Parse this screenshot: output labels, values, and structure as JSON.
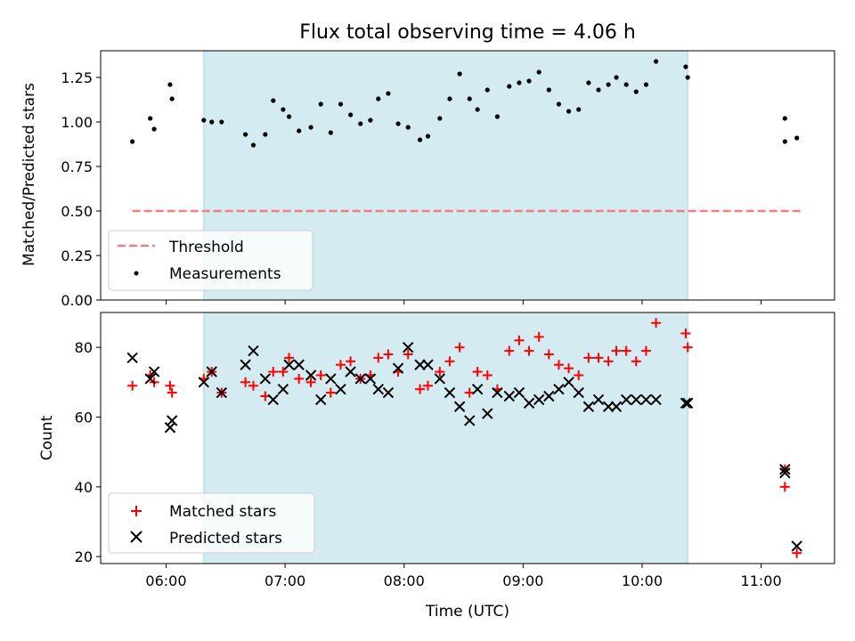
{
  "chart_data": [
    {
      "type": "scatter",
      "title": "Flux total observing time = 4.06 h",
      "ylabel": "Matched/Predicted stars",
      "xlim": [
        "05:27",
        "11:37"
      ],
      "ylim": [
        0,
        1.4
      ],
      "x_ticks": [
        "06:00",
        "07:00",
        "08:00",
        "09:00",
        "10:00",
        "11:00"
      ],
      "y_ticks": [
        "0.00",
        "0.25",
        "0.50",
        "0.75",
        "1.00",
        "1.25"
      ],
      "shaded_span": {
        "start": "06:19",
        "end": "10:23"
      },
      "legend_position": "lower-left",
      "series": [
        {
          "name": "Threshold",
          "style": "dashed-line",
          "color": "#f08080",
          "points": [
            [
              "05:43",
              0.5
            ],
            [
              "11:20",
              0.5
            ]
          ]
        },
        {
          "name": "Measurements",
          "style": "dot",
          "color": "#000000",
          "points": [
            [
              "05:43",
              0.89
            ],
            [
              "05:52",
              1.02
            ],
            [
              "05:54",
              0.96
            ],
            [
              "06:02",
              1.21
            ],
            [
              "06:03",
              1.13
            ],
            [
              "06:19",
              1.01
            ],
            [
              "06:23",
              1.0
            ],
            [
              "06:28",
              1.0
            ],
            [
              "06:40",
              0.93
            ],
            [
              "06:44",
              0.87
            ],
            [
              "06:50",
              0.93
            ],
            [
              "06:54",
              1.12
            ],
            [
              "06:59",
              1.07
            ],
            [
              "07:02",
              1.03
            ],
            [
              "07:07",
              0.95
            ],
            [
              "07:13",
              0.97
            ],
            [
              "07:18",
              1.1
            ],
            [
              "07:23",
              0.94
            ],
            [
              "07:28",
              1.1
            ],
            [
              "07:33",
              1.04
            ],
            [
              "07:38",
              0.99
            ],
            [
              "07:43",
              1.01
            ],
            [
              "07:47",
              1.13
            ],
            [
              "07:52",
              1.16
            ],
            [
              "07:57",
              0.99
            ],
            [
              "08:02",
              0.97
            ],
            [
              "08:08",
              0.9
            ],
            [
              "08:12",
              0.92
            ],
            [
              "08:18",
              1.02
            ],
            [
              "08:23",
              1.13
            ],
            [
              "08:28",
              1.27
            ],
            [
              "08:33",
              1.13
            ],
            [
              "08:37",
              1.07
            ],
            [
              "08:42",
              1.18
            ],
            [
              "08:47",
              1.03
            ],
            [
              "08:53",
              1.2
            ],
            [
              "08:58",
              1.22
            ],
            [
              "09:03",
              1.23
            ],
            [
              "09:08",
              1.28
            ],
            [
              "09:13",
              1.18
            ],
            [
              "09:18",
              1.1
            ],
            [
              "09:23",
              1.06
            ],
            [
              "09:28",
              1.07
            ],
            [
              "09:33",
              1.22
            ],
            [
              "09:38",
              1.18
            ],
            [
              "09:43",
              1.21
            ],
            [
              "09:47",
              1.25
            ],
            [
              "09:52",
              1.21
            ],
            [
              "09:57",
              1.17
            ],
            [
              "10:02",
              1.21
            ],
            [
              "10:07",
              1.34
            ],
            [
              "10:22",
              1.31
            ],
            [
              "10:23",
              1.25
            ],
            [
              "11:12",
              1.02
            ],
            [
              "11:12",
              0.89
            ],
            [
              "11:18",
              0.91
            ]
          ]
        }
      ]
    },
    {
      "type": "scatter",
      "xlabel": "Time (UTC)",
      "ylabel": "Count",
      "xlim": [
        "05:27",
        "11:37"
      ],
      "ylim": [
        18,
        90
      ],
      "x_ticks": [
        "06:00",
        "07:00",
        "08:00",
        "09:00",
        "10:00",
        "11:00"
      ],
      "y_ticks": [
        "20",
        "40",
        "60",
        "80"
      ],
      "shaded_span": {
        "start": "06:19",
        "end": "10:23"
      },
      "legend_position": "lower-left",
      "series": [
        {
          "name": "Matched stars",
          "style": "plus",
          "color": "#ff0000",
          "points": [
            [
              "05:43",
              69
            ],
            [
              "05:52",
              72
            ],
            [
              "05:54",
              70
            ],
            [
              "06:02",
              69
            ],
            [
              "06:03",
              67
            ],
            [
              "06:19",
              71
            ],
            [
              "06:23",
              73
            ],
            [
              "06:28",
              67
            ],
            [
              "06:40",
              70
            ],
            [
              "06:44",
              69
            ],
            [
              "06:50",
              66
            ],
            [
              "06:54",
              73
            ],
            [
              "06:59",
              73
            ],
            [
              "07:02",
              77
            ],
            [
              "07:07",
              71
            ],
            [
              "07:13",
              70
            ],
            [
              "07:18",
              72
            ],
            [
              "07:23",
              67
            ],
            [
              "07:28",
              75
            ],
            [
              "07:33",
              76
            ],
            [
              "07:38",
              71
            ],
            [
              "07:43",
              72
            ],
            [
              "07:47",
              77
            ],
            [
              "07:52",
              78
            ],
            [
              "07:57",
              73
            ],
            [
              "08:02",
              78
            ],
            [
              "08:08",
              68
            ],
            [
              "08:12",
              69
            ],
            [
              "08:18",
              73
            ],
            [
              "08:23",
              76
            ],
            [
              "08:28",
              80
            ],
            [
              "08:33",
              67
            ],
            [
              "08:37",
              73
            ],
            [
              "08:42",
              72
            ],
            [
              "08:47",
              68
            ],
            [
              "08:53",
              79
            ],
            [
              "08:58",
              82
            ],
            [
              "09:03",
              79
            ],
            [
              "09:08",
              83
            ],
            [
              "09:13",
              78
            ],
            [
              "09:18",
              75
            ],
            [
              "09:23",
              74
            ],
            [
              "09:28",
              72
            ],
            [
              "09:33",
              77
            ],
            [
              "09:38",
              77
            ],
            [
              "09:43",
              76
            ],
            [
              "09:47",
              79
            ],
            [
              "09:52",
              79
            ],
            [
              "09:57",
              76
            ],
            [
              "10:02",
              79
            ],
            [
              "10:07",
              87
            ],
            [
              "10:22",
              84
            ],
            [
              "10:23",
              80
            ],
            [
              "11:12",
              45
            ],
            [
              "11:12",
              40
            ],
            [
              "11:18",
              21
            ]
          ]
        },
        {
          "name": "Predicted stars",
          "style": "x",
          "color": "#000000",
          "points": [
            [
              "05:43",
              77
            ],
            [
              "05:52",
              71
            ],
            [
              "05:54",
              73
            ],
            [
              "06:02",
              57
            ],
            [
              "06:03",
              59
            ],
            [
              "06:19",
              70
            ],
            [
              "06:23",
              73
            ],
            [
              "06:28",
              67
            ],
            [
              "06:40",
              75
            ],
            [
              "06:44",
              79
            ],
            [
              "06:50",
              71
            ],
            [
              "06:54",
              65
            ],
            [
              "06:59",
              68
            ],
            [
              "07:02",
              75
            ],
            [
              "07:07",
              75
            ],
            [
              "07:13",
              72
            ],
            [
              "07:18",
              65
            ],
            [
              "07:23",
              71
            ],
            [
              "07:28",
              68
            ],
            [
              "07:33",
              73
            ],
            [
              "07:38",
              71
            ],
            [
              "07:43",
              71
            ],
            [
              "07:47",
              68
            ],
            [
              "07:52",
              67
            ],
            [
              "07:57",
              74
            ],
            [
              "08:02",
              80
            ],
            [
              "08:08",
              75
            ],
            [
              "08:12",
              75
            ],
            [
              "08:18",
              71
            ],
            [
              "08:23",
              67
            ],
            [
              "08:28",
              63
            ],
            [
              "08:33",
              59
            ],
            [
              "08:37",
              68
            ],
            [
              "08:42",
              61
            ],
            [
              "08:47",
              67
            ],
            [
              "08:53",
              66
            ],
            [
              "08:58",
              67
            ],
            [
              "09:03",
              64
            ],
            [
              "09:08",
              65
            ],
            [
              "09:13",
              66
            ],
            [
              "09:18",
              68
            ],
            [
              "09:23",
              70
            ],
            [
              "09:28",
              67
            ],
            [
              "09:33",
              63
            ],
            [
              "09:38",
              65
            ],
            [
              "09:43",
              63
            ],
            [
              "09:47",
              63
            ],
            [
              "09:52",
              65
            ],
            [
              "09:57",
              65
            ],
            [
              "10:02",
              65
            ],
            [
              "10:07",
              65
            ],
            [
              "10:22",
              64
            ],
            [
              "10:23",
              64
            ],
            [
              "11:12",
              45
            ],
            [
              "11:12",
              44
            ],
            [
              "11:18",
              23
            ]
          ]
        }
      ]
    }
  ],
  "colors": {
    "span": "#d3ebf1",
    "span_edge": "#add8e6",
    "threshold": "#f08080",
    "matched": "#ff0000",
    "predicted": "#000000",
    "points": "#000000"
  }
}
